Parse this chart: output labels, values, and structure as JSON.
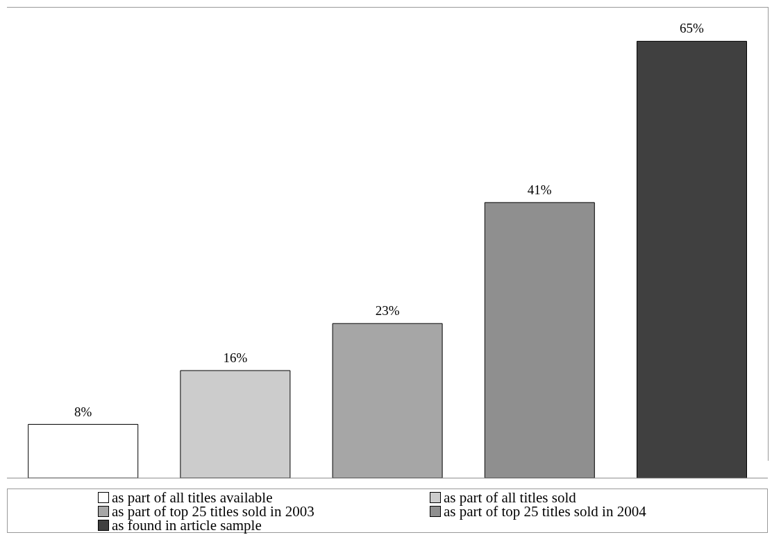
{
  "chart_data": {
    "type": "bar",
    "categories": [
      null,
      null,
      null,
      null,
      null
    ],
    "stacked": true,
    "series": [
      {
        "name": "as part of all titles available",
        "color": "#ffffff",
        "values": [
          8,
          null,
          null,
          null,
          null
        ],
        "value_labels": [
          "8%",
          null,
          null,
          null,
          null
        ]
      },
      {
        "name": "as part of all titles sold",
        "color": "#cccccc",
        "values": [
          null,
          16,
          null,
          null,
          null
        ],
        "value_labels": [
          null,
          "16%",
          null,
          null,
          null
        ]
      },
      {
        "name": "as part of top 25 titles sold in 2003",
        "color": "#a6a6a6",
        "values": [
          null,
          null,
          23,
          null,
          null
        ],
        "value_labels": [
          null,
          null,
          "23%",
          null,
          null
        ]
      },
      {
        "name": "as part of top 25 titles sold in 2004",
        "color": "#8f8f8f",
        "values": [
          null,
          null,
          null,
          41,
          null
        ],
        "value_labels": [
          null,
          null,
          null,
          "41%",
          null
        ]
      },
      {
        "name": "as found in article sample",
        "color": "#404040",
        "values": [
          null,
          null,
          null,
          null,
          65
        ],
        "value_labels": [
          null,
          null,
          null,
          null,
          "65%"
        ]
      }
    ],
    "ylim": [
      0,
      70
    ],
    "legend": "bottom"
  }
}
